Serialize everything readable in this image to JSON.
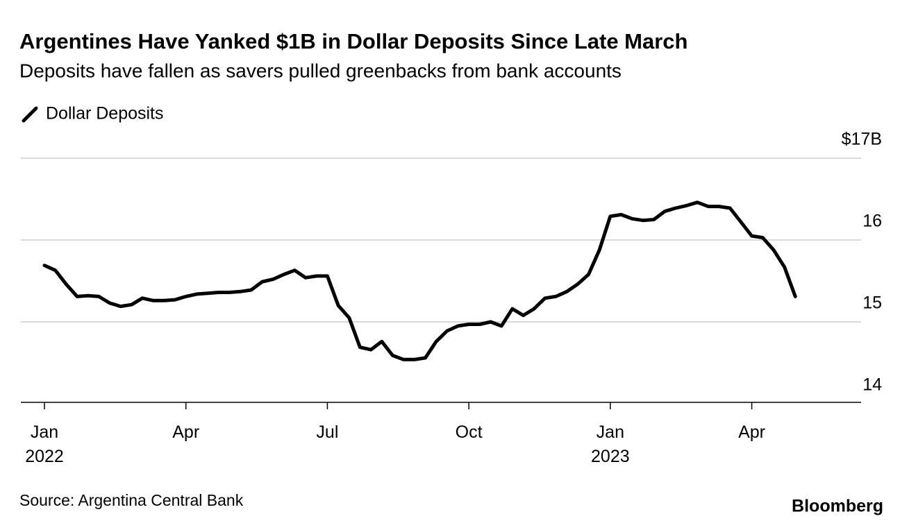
{
  "chart_data": {
    "type": "line",
    "title": "Argentines Have Yanked $1B in Dollar Deposits Since Late March",
    "subtitle": "Deposits have fallen as savers pulled greenbacks from bank accounts",
    "source": "Source: Argentina Central Bank",
    "credit": "Bloomberg",
    "categories": [
      "Jan\n2022",
      null,
      null,
      null,
      null,
      null,
      null,
      null,
      null,
      null,
      null,
      null,
      null,
      "Apr",
      null,
      null,
      null,
      null,
      null,
      null,
      null,
      null,
      null,
      null,
      null,
      null,
      "Jul",
      null,
      null,
      null,
      null,
      null,
      null,
      null,
      null,
      null,
      null,
      null,
      null,
      "Oct",
      null,
      null,
      null,
      null,
      null,
      null,
      null,
      null,
      null,
      null,
      null,
      null,
      "Jan\n2023",
      null,
      null,
      null,
      null,
      null,
      null,
      null,
      null,
      null,
      null,
      null,
      null,
      "Apr",
      null,
      null,
      null,
      null
    ],
    "series": [
      {
        "name": "Dollar Deposits",
        "color": "#000000",
        "values": [
          15.69,
          15.63,
          15.46,
          15.31,
          15.32,
          15.31,
          15.23,
          15.19,
          15.21,
          15.29,
          15.26,
          15.26,
          15.27,
          15.31,
          15.34,
          15.35,
          15.36,
          15.36,
          15.37,
          15.39,
          15.49,
          15.52,
          15.58,
          15.63,
          15.54,
          15.56,
          15.56,
          15.2,
          15.05,
          14.69,
          14.66,
          14.76,
          14.59,
          14.54,
          14.54,
          14.56,
          14.76,
          14.89,
          14.95,
          14.97,
          14.97,
          15.0,
          14.95,
          15.16,
          15.08,
          15.16,
          15.29,
          15.31,
          15.37,
          15.46,
          15.58,
          15.88,
          16.29,
          16.31,
          16.26,
          16.24,
          16.25,
          16.35,
          16.39,
          16.42,
          16.46,
          16.41,
          16.41,
          16.39,
          16.22,
          16.05,
          16.03,
          15.88,
          15.67,
          15.31
        ]
      }
    ],
    "ylim": [
      14,
      17
    ],
    "yticks": [
      14,
      15,
      16,
      {
        "value": 17,
        "label": "$17B"
      }
    ],
    "grid": true
  }
}
